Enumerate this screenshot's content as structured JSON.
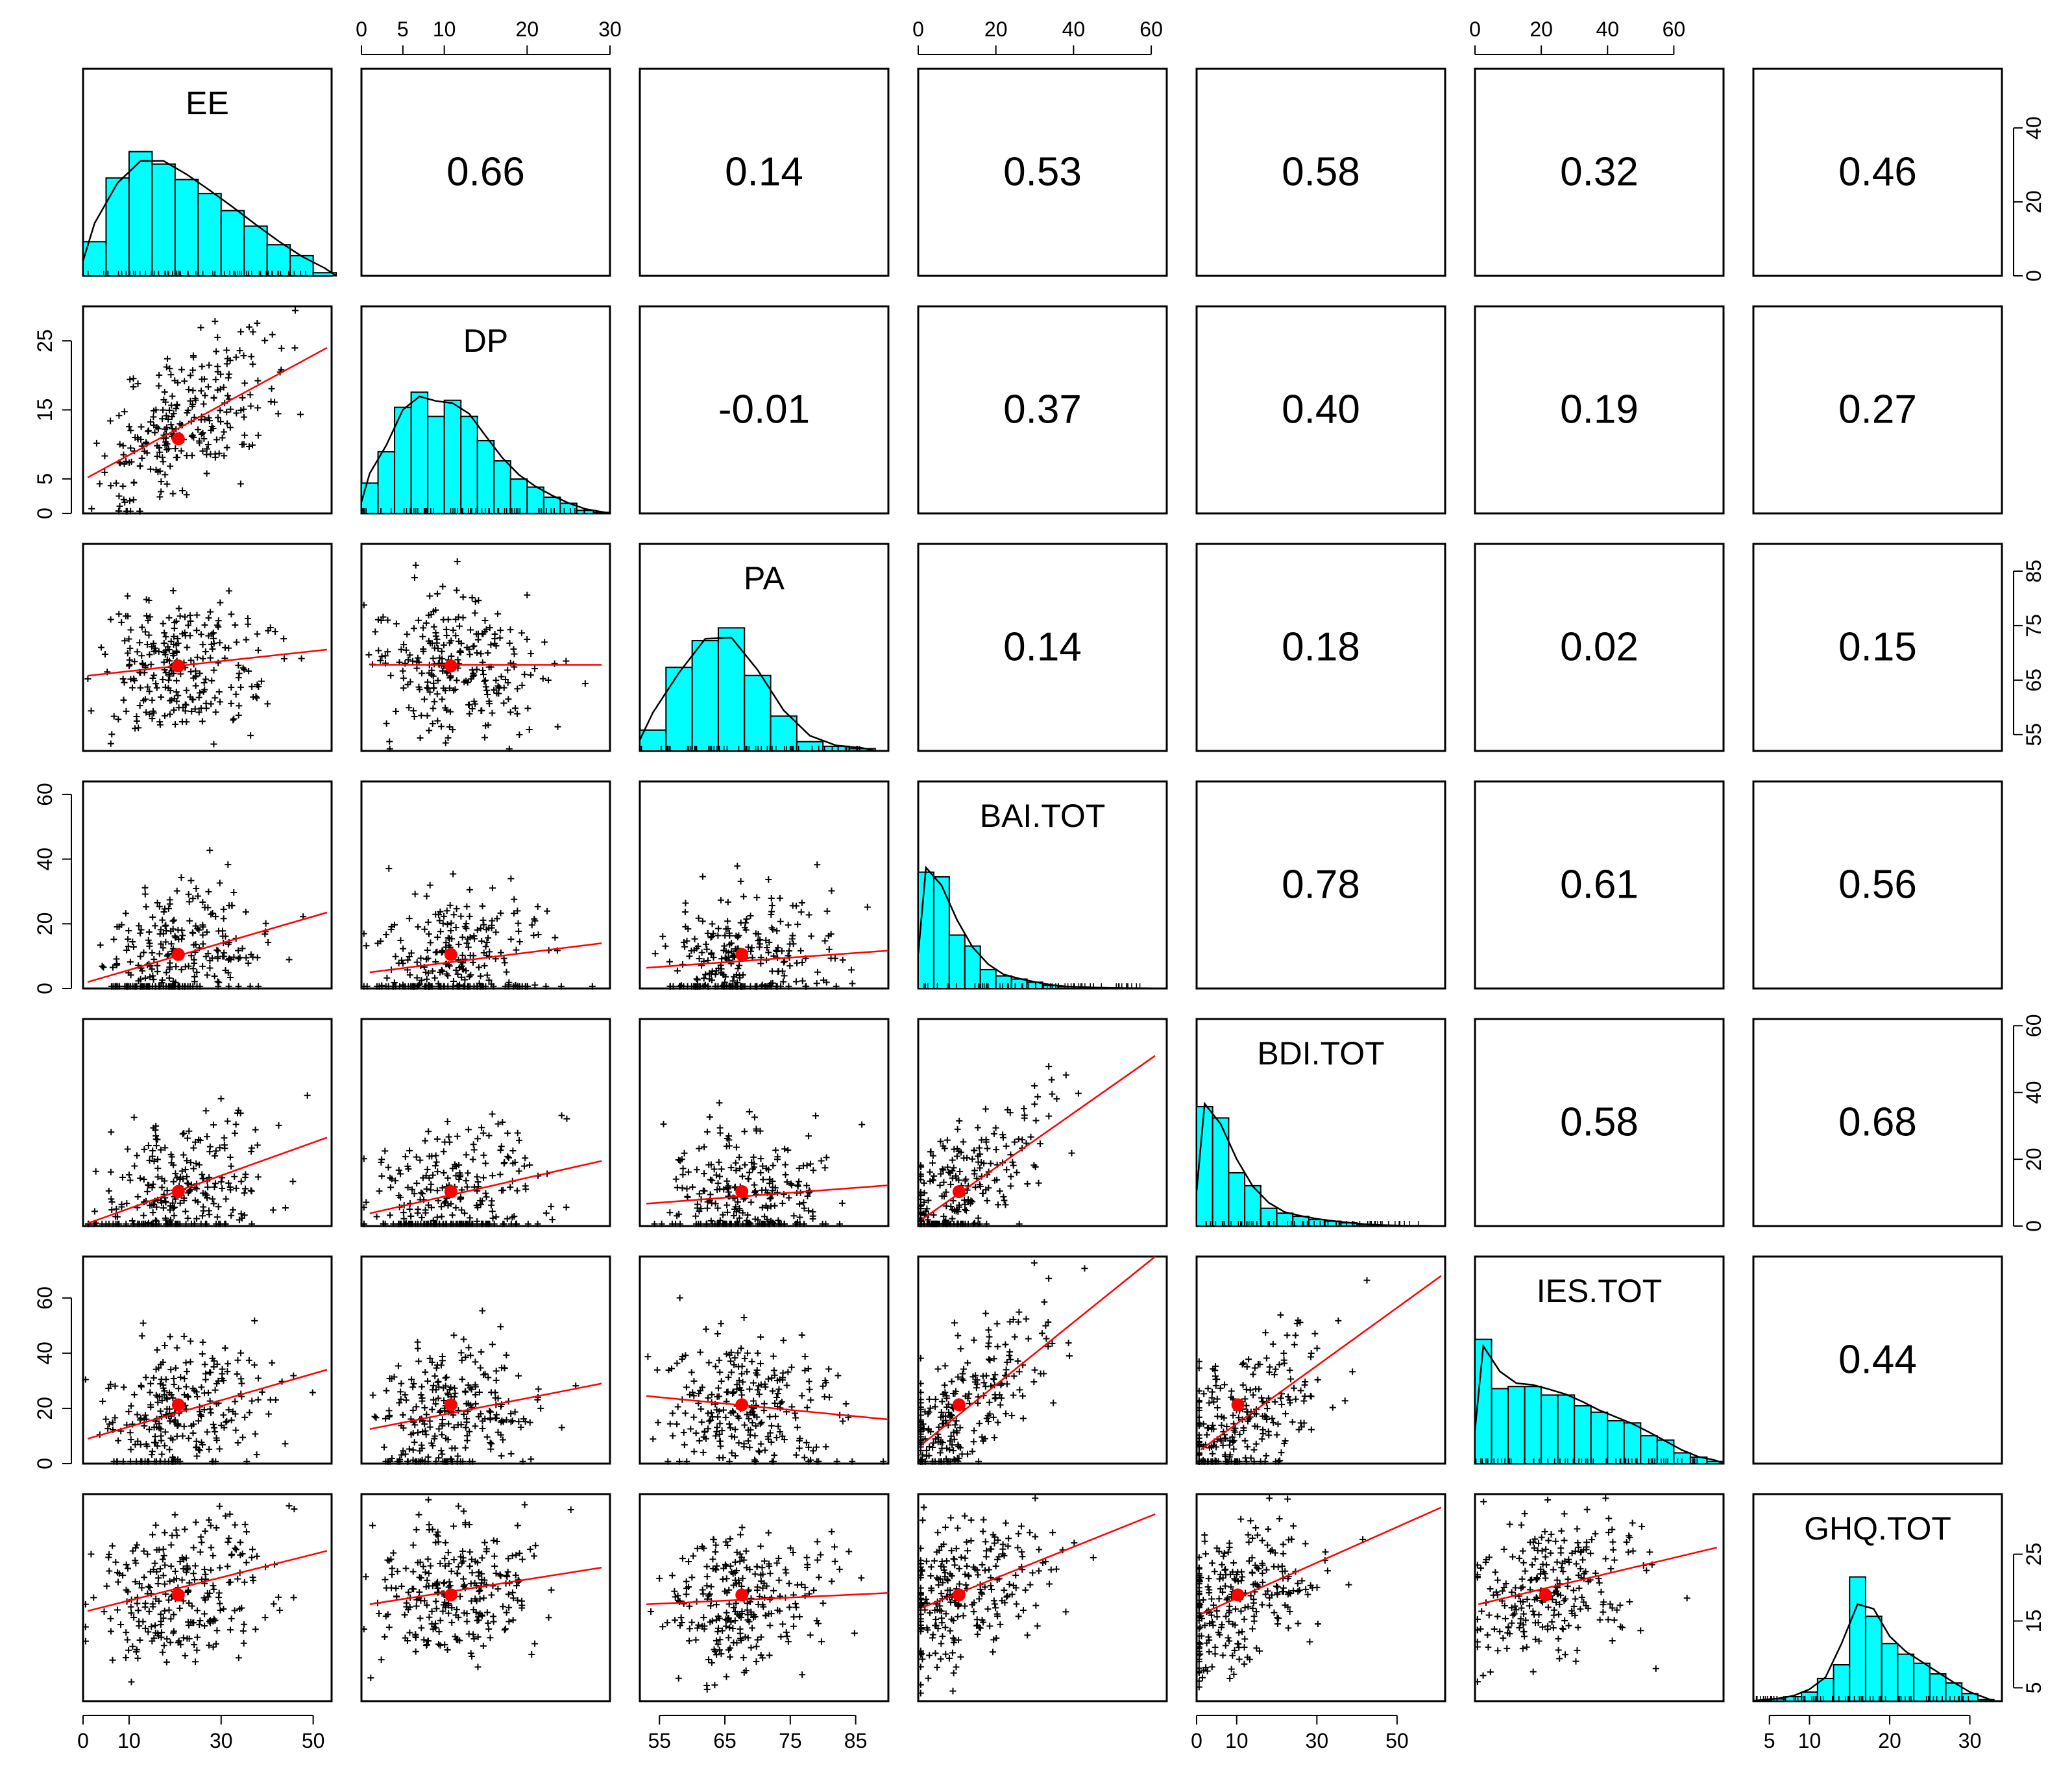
{
  "chart_data": {
    "type": "scatter-matrix",
    "title": "",
    "variables": [
      "EE",
      "DP",
      "PA",
      "BAI.TOT",
      "BDI.TOT",
      "IES.TOT",
      "GHQ.TOT"
    ],
    "ranges": [
      [
        0,
        54
      ],
      [
        0,
        30
      ],
      [
        52,
        90
      ],
      [
        0,
        64
      ],
      [
        0,
        62
      ],
      [
        0,
        75
      ],
      [
        3,
        34
      ]
    ],
    "axis_ticks": [
      [
        0,
        10,
        30,
        50
      ],
      [
        0,
        5,
        10,
        20,
        30
      ],
      [
        55,
        65,
        75,
        85
      ],
      [
        0,
        20,
        40,
        60
      ],
      [
        0,
        10,
        30,
        50
      ],
      [
        0,
        20,
        40,
        60
      ],
      [
        5,
        10,
        20,
        30
      ]
    ],
    "axis_tick_labels": {
      "top": {
        "DP": [
          "0",
          "5",
          "10",
          "20",
          "30"
        ],
        "BAI.TOT": [
          "0",
          "20",
          "40",
          "60"
        ],
        "IES.TOT": [
          "0",
          "20",
          "40",
          "60"
        ]
      },
      "bottom": {
        "EE": [
          "0",
          "10",
          "30",
          "50"
        ],
        "PA": [
          "55",
          "65",
          "75",
          "85"
        ],
        "BDI.TOT": [
          "0",
          "10",
          "30",
          "50"
        ],
        "GHQ.TOT": [
          "5",
          "10",
          "20",
          "30"
        ]
      },
      "left": {
        "DP": [
          "0",
          "5",
          "15",
          "25"
        ],
        "BAI.TOT": [
          "0",
          "20",
          "40",
          "60"
        ],
        "IES.TOT": [
          "0",
          "20",
          "40",
          "60"
        ]
      },
      "right": {
        "EE": [
          "0",
          "20",
          "40"
        ],
        "PA": [
          "55",
          "65",
          "75",
          "85"
        ],
        "BDI.TOT": [
          "0",
          "20",
          "40",
          "60"
        ],
        "GHQ.TOT": [
          "5",
          "15",
          "25"
        ]
      }
    },
    "right_axis_ranges": {
      "EE": [
        0,
        56
      ]
    },
    "correlations": [
      {
        "row": "EE",
        "col": "DP",
        "label": "0.66"
      },
      {
        "row": "EE",
        "col": "PA",
        "label": "0.14"
      },
      {
        "row": "EE",
        "col": "BAI.TOT",
        "label": "0.53"
      },
      {
        "row": "EE",
        "col": "BDI.TOT",
        "label": "0.58"
      },
      {
        "row": "EE",
        "col": "IES.TOT",
        "label": "0.32"
      },
      {
        "row": "EE",
        "col": "GHQ.TOT",
        "label": "0.46"
      },
      {
        "row": "DP",
        "col": "PA",
        "label": "-0.01"
      },
      {
        "row": "DP",
        "col": "BAI.TOT",
        "label": "0.37"
      },
      {
        "row": "DP",
        "col": "BDI.TOT",
        "label": "0.40"
      },
      {
        "row": "DP",
        "col": "IES.TOT",
        "label": "0.19"
      },
      {
        "row": "DP",
        "col": "GHQ.TOT",
        "label": "0.27"
      },
      {
        "row": "PA",
        "col": "BAI.TOT",
        "label": "0.14"
      },
      {
        "row": "PA",
        "col": "BDI.TOT",
        "label": "0.18"
      },
      {
        "row": "PA",
        "col": "IES.TOT",
        "label": "0.02"
      },
      {
        "row": "PA",
        "col": "GHQ.TOT",
        "label": "0.15"
      },
      {
        "row": "BAI.TOT",
        "col": "BDI.TOT",
        "label": "0.78"
      },
      {
        "row": "BAI.TOT",
        "col": "IES.TOT",
        "label": "0.61"
      },
      {
        "row": "BAI.TOT",
        "col": "GHQ.TOT",
        "label": "0.56"
      },
      {
        "row": "BDI.TOT",
        "col": "IES.TOT",
        "label": "0.58"
      },
      {
        "row": "BDI.TOT",
        "col": "GHQ.TOT",
        "label": "0.68"
      },
      {
        "row": "IES.TOT",
        "col": "GHQ.TOT",
        "label": "0.44"
      }
    ],
    "histograms": [
      {
        "variable": "EE",
        "bin_edges": [
          0,
          5,
          10,
          15,
          20,
          25,
          30,
          35,
          40,
          45,
          50,
          55
        ],
        "densities": [
          0.022,
          0.063,
          0.08,
          0.072,
          0.062,
          0.053,
          0.042,
          0.032,
          0.02,
          0.013,
          0.002
        ],
        "density_peak": 0.074
      },
      {
        "variable": "DP",
        "bin_edges": [
          0,
          2,
          4,
          6,
          8,
          10,
          12,
          14,
          16,
          18,
          20,
          22,
          24,
          26,
          28,
          30
        ],
        "densities": [
          0.03,
          0.061,
          0.105,
          0.12,
          0.096,
          0.112,
          0.096,
          0.072,
          0.052,
          0.034,
          0.026,
          0.016,
          0.01,
          0.003,
          0.001
        ],
        "density_peak": 0.123
      },
      {
        "variable": "PA",
        "bin_edges": [
          52,
          56,
          60,
          64,
          68,
          72,
          76,
          80,
          84,
          88
        ],
        "densities": [
          0.018,
          0.072,
          0.095,
          0.106,
          0.065,
          0.03,
          0.008,
          0.004,
          0.002
        ],
        "density_peak": 0.107
      },
      {
        "variable": "BAI.TOT",
        "bin_edges": [
          0,
          4,
          8,
          12,
          16,
          20,
          24,
          28,
          32,
          36,
          40,
          44,
          48,
          52,
          56,
          60,
          64
        ],
        "densities": [
          0.074,
          0.071,
          0.034,
          0.027,
          0.012,
          0.008,
          0.006,
          0.004,
          0.002,
          0.001,
          0.001,
          0.0005,
          0.0002,
          0.0002,
          0.0001,
          0.0001
        ],
        "density_peak": 0.079
      },
      {
        "variable": "BDI.TOT",
        "bin_edges": [
          0,
          4,
          8,
          12,
          16,
          20,
          24,
          28,
          32,
          36,
          40,
          44,
          48,
          52,
          56,
          60
        ],
        "densities": [
          0.074,
          0.067,
          0.033,
          0.025,
          0.011,
          0.008,
          0.006,
          0.004,
          0.003,
          0.002,
          0.001,
          0.0005,
          0.0003,
          0.0002,
          0.0001
        ],
        "density_peak": 0.077
      },
      {
        "variable": "IES.TOT",
        "bin_edges": [
          0,
          5,
          10,
          15,
          20,
          25,
          30,
          35,
          40,
          45,
          50,
          55,
          60,
          65,
          70,
          75
        ],
        "densities": [
          0.058,
          0.035,
          0.036,
          0.036,
          0.032,
          0.032,
          0.027,
          0.024,
          0.02,
          0.019,
          0.013,
          0.011,
          0.005,
          0.003,
          0.001
        ],
        "density_peak": 0.058
      },
      {
        "variable": "GHQ.TOT",
        "bin_edges": [
          3,
          5,
          7,
          9,
          11,
          13,
          15,
          17,
          19,
          21,
          23,
          25,
          27,
          29,
          31,
          33
        ],
        "densities": [
          0.001,
          0.003,
          0.006,
          0.012,
          0.03,
          0.048,
          0.164,
          0.112,
          0.076,
          0.062,
          0.05,
          0.036,
          0.024,
          0.01,
          0.002
        ],
        "density_peak": 0.164
      }
    ],
    "regressions": [
      {
        "row": "DP",
        "col": "EE",
        "mean": [
          20.7,
          10.8
        ],
        "fit": [
          [
            1,
            5.2
          ],
          [
            53,
            24
          ]
        ]
      },
      {
        "row": "PA",
        "col": "EE",
        "mean": [
          20.7,
          67.6
        ],
        "fit": [
          [
            1,
            65.8
          ],
          [
            53,
            70.6
          ]
        ]
      },
      {
        "row": "PA",
        "col": "DP",
        "mean": [
          10.8,
          67.6
        ],
        "fit": [
          [
            1,
            67.8
          ],
          [
            29,
            67.8
          ]
        ]
      },
      {
        "row": "BAI.TOT",
        "col": "EE",
        "mean": [
          20.7,
          10.5
        ],
        "fit": [
          [
            1,
            2
          ],
          [
            53,
            23.5
          ]
        ]
      },
      {
        "row": "BAI.TOT",
        "col": "DP",
        "mean": [
          10.8,
          10.5
        ],
        "fit": [
          [
            1,
            5
          ],
          [
            29,
            14
          ]
        ]
      },
      {
        "row": "BAI.TOT",
        "col": "PA",
        "mean": [
          67.6,
          10.5
        ],
        "fit": [
          [
            53,
            6.4
          ],
          [
            90,
            11.7
          ]
        ]
      },
      {
        "row": "BDI.TOT",
        "col": "EE",
        "mean": [
          20.7,
          10.3
        ],
        "fit": [
          [
            1,
            0.8
          ],
          [
            53,
            26.5
          ]
        ]
      },
      {
        "row": "BDI.TOT",
        "col": "DP",
        "mean": [
          10.8,
          10.3
        ],
        "fit": [
          [
            1,
            3.8
          ],
          [
            29,
            19.5
          ]
        ]
      },
      {
        "row": "BDI.TOT",
        "col": "PA",
        "mean": [
          67.6,
          10.3
        ],
        "fit": [
          [
            53,
            6.7
          ],
          [
            90,
            12.2
          ]
        ]
      },
      {
        "row": "BDI.TOT",
        "col": "BAI.TOT",
        "mean": [
          10.5,
          10.3
        ],
        "fit": [
          [
            1,
            2
          ],
          [
            61,
            51
          ]
        ]
      },
      {
        "row": "IES.TOT",
        "col": "EE",
        "mean": [
          20.7,
          21.3
        ],
        "fit": [
          [
            1,
            9
          ],
          [
            53,
            34
          ]
        ]
      },
      {
        "row": "IES.TOT",
        "col": "DP",
        "mean": [
          10.8,
          21.3
        ],
        "fit": [
          [
            1,
            12.5
          ],
          [
            29,
            29
          ]
        ]
      },
      {
        "row": "IES.TOT",
        "col": "PA",
        "mean": [
          67.6,
          21.3
        ],
        "fit": [
          [
            53,
            24.5
          ],
          [
            90,
            16
          ]
        ]
      },
      {
        "row": "IES.TOT",
        "col": "BAI.TOT",
        "mean": [
          10.5,
          21.3
        ],
        "fit": [
          [
            1,
            7
          ],
          [
            61,
            75
          ]
        ]
      },
      {
        "row": "IES.TOT",
        "col": "BDI.TOT",
        "mean": [
          10.3,
          21.3
        ],
        "fit": [
          [
            1,
            5
          ],
          [
            61,
            68
          ]
        ]
      },
      {
        "row": "GHQ.TOT",
        "col": "EE",
        "mean": [
          20.7,
          18.9
        ],
        "fit": [
          [
            1,
            16.5
          ],
          [
            53,
            25.5
          ]
        ]
      },
      {
        "row": "GHQ.TOT",
        "col": "DP",
        "mean": [
          10.8,
          18.9
        ],
        "fit": [
          [
            1,
            17.5
          ],
          [
            29,
            23
          ]
        ]
      },
      {
        "row": "GHQ.TOT",
        "col": "PA",
        "mean": [
          67.6,
          18.9
        ],
        "fit": [
          [
            53,
            17.5
          ],
          [
            90,
            19.2
          ]
        ]
      },
      {
        "row": "GHQ.TOT",
        "col": "BAI.TOT",
        "mean": [
          10.5,
          18.9
        ],
        "fit": [
          [
            1,
            17
          ],
          [
            61,
            31
          ]
        ]
      },
      {
        "row": "GHQ.TOT",
        "col": "BDI.TOT",
        "mean": [
          10.3,
          18.9
        ],
        "fit": [
          [
            1,
            16
          ],
          [
            61,
            32
          ]
        ]
      },
      {
        "row": "GHQ.TOT",
        "col": "IES.TOT",
        "mean": [
          21.3,
          18.9
        ],
        "fit": [
          [
            1,
            17.5
          ],
          [
            73,
            26
          ]
        ]
      }
    ],
    "point_marker": "+",
    "colors": {
      "histogram_fill": "#00ffff",
      "fit_line": "#ff0000",
      "mean_point": "#ff0000",
      "points": "#000000",
      "density_line": "#000000"
    }
  }
}
